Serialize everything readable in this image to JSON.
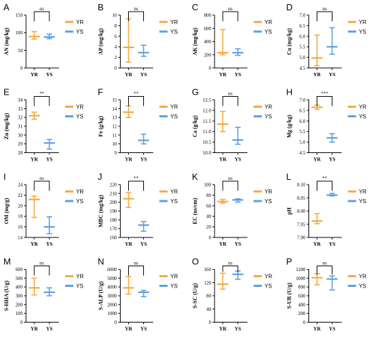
{
  "colors": {
    "YR": "#F5A840",
    "YS": "#5A9FE0"
  },
  "legend": [
    {
      "name": "YR",
      "color": "#F5A840"
    },
    {
      "name": "YS",
      "color": "#5A9FE0"
    }
  ],
  "chart_data": [
    {
      "id": "A",
      "type": "errorbar",
      "categories": [
        "YR",
        "YS"
      ],
      "ylabel": "AN (mg/kg)",
      "ylim": [
        0,
        150
      ],
      "yticks": [
        "0",
        "50",
        "100",
        "150"
      ],
      "sig": "ns",
      "series": [
        {
          "name": "YR",
          "center": 89,
          "low": 82,
          "high": 103
        },
        {
          "name": "YS",
          "center": 88,
          "low": 83,
          "high": 96
        }
      ]
    },
    {
      "id": "B",
      "type": "errorbar",
      "categories": [
        "YR",
        "YS"
      ],
      "ylabel": "AP (mg/kg)",
      "ylim": [
        0,
        10
      ],
      "yticks": [
        "0",
        "2",
        "4",
        "6",
        "8",
        "10"
      ],
      "sig": "ns",
      "series": [
        {
          "name": "YR",
          "center": 3.9,
          "low": 1.1,
          "high": 9.3
        },
        {
          "name": "YS",
          "center": 2.9,
          "low": 2.2,
          "high": 4.3
        }
      ]
    },
    {
      "id": "C",
      "type": "errorbar",
      "categories": [
        "YR",
        "YS"
      ],
      "ylabel": "AK (mg/kg)",
      "ylim": [
        0,
        800
      ],
      "yticks": [
        "0",
        "200",
        "400",
        "600",
        "800"
      ],
      "sig": "ns",
      "series": [
        {
          "name": "YR",
          "center": 230,
          "low": 200,
          "high": 580
        },
        {
          "name": "YS",
          "center": 230,
          "low": 190,
          "high": 290
        }
      ]
    },
    {
      "id": "D",
      "type": "errorbar",
      "categories": [
        "YR",
        "YS"
      ],
      "ylabel": "Cu (mg/kg)",
      "ylim": [
        4.5,
        7.0
      ],
      "yticks": [
        "4.5",
        "5.0",
        "5.5",
        "6.0",
        "6.5",
        "7.0"
      ],
      "sig": "ns",
      "series": [
        {
          "name": "YR",
          "center": 4.97,
          "low": 4.6,
          "high": 6.05
        },
        {
          "name": "YS",
          "center": 5.5,
          "low": 5.15,
          "high": 6.4
        }
      ]
    },
    {
      "id": "E",
      "type": "errorbar",
      "categories": [
        "YR",
        "YS"
      ],
      "ylabel": "Zn (mg/kg)",
      "ylim": [
        28,
        34
      ],
      "yticks": [
        "28",
        "29",
        "30",
        "31",
        "32",
        "33",
        "34"
      ],
      "sig": "**",
      "series": [
        {
          "name": "YR",
          "center": 32.2,
          "low": 31.8,
          "high": 32.6
        },
        {
          "name": "YS",
          "center": 29.1,
          "low": 28.4,
          "high": 29.5
        }
      ]
    },
    {
      "id": "F",
      "type": "errorbar",
      "categories": [
        "YR",
        "YS"
      ],
      "ylabel": "Fe (g/kg)",
      "ylim": [
        9,
        15
      ],
      "yticks": [
        "9",
        "10",
        "11",
        "12",
        "13",
        "14",
        "15"
      ],
      "sig": "**",
      "series": [
        {
          "name": "YR",
          "center": 13.6,
          "low": 13.0,
          "high": 14.3
        },
        {
          "name": "YS",
          "center": 10.4,
          "low": 10.0,
          "high": 11.1
        }
      ]
    },
    {
      "id": "G",
      "type": "errorbar",
      "categories": [
        "YR",
        "YS"
      ],
      "ylabel": "Ca (g/kg)",
      "ylim": [
        10.0,
        12.5
      ],
      "yticks": [
        "10.0",
        "10.5",
        "11.0",
        "11.5",
        "12.0",
        "12.5"
      ],
      "sig": "ns",
      "series": [
        {
          "name": "YR",
          "center": 11.35,
          "low": 11.0,
          "high": 11.95
        },
        {
          "name": "YS",
          "center": 10.6,
          "low": 10.4,
          "high": 11.2
        }
      ]
    },
    {
      "id": "H",
      "type": "errorbar",
      "categories": [
        "YR",
        "YS"
      ],
      "ylabel": "Mg (g/kg)",
      "ylim": [
        4.5,
        7.0
      ],
      "yticks": [
        "4.5",
        "5.0",
        "5.5",
        "6.0",
        "6.5",
        "7.0"
      ],
      "sig": "***",
      "series": [
        {
          "name": "YR",
          "center": 6.65,
          "low": 6.55,
          "high": 6.75
        },
        {
          "name": "YS",
          "center": 5.2,
          "low": 5.0,
          "high": 5.4
        }
      ]
    },
    {
      "id": "I",
      "type": "errorbar",
      "categories": [
        "YR",
        "YS"
      ],
      "ylabel": "OM (mg/g)",
      "ylim": [
        14,
        24
      ],
      "yticks": [
        "14",
        "16",
        "18",
        "20",
        "22",
        "24"
      ],
      "sig": "ns",
      "series": [
        {
          "name": "YR",
          "center": 21.2,
          "low": 17.8,
          "high": 21.8
        },
        {
          "name": "YS",
          "center": 16.0,
          "low": 14.7,
          "high": 17.9
        }
      ]
    },
    {
      "id": "J",
      "type": "errorbar",
      "categories": [
        "YR",
        "YS"
      ],
      "ylabel": "MBC (mg/kg)",
      "ylim": [
        160,
        220
      ],
      "yticks": [
        "160",
        "170",
        "180",
        "190",
        "200",
        "210",
        "220"
      ],
      "sig": "**",
      "series": [
        {
          "name": "YR",
          "center": 204,
          "low": 194,
          "high": 211
        },
        {
          "name": "YS",
          "center": 174,
          "low": 167,
          "high": 178
        }
      ]
    },
    {
      "id": "K",
      "type": "errorbar",
      "categories": [
        "YR",
        "YS"
      ],
      "ylabel": "EC (us/cm)",
      "ylim": [
        0,
        100
      ],
      "yticks": [
        "0",
        "20",
        "40",
        "60",
        "80",
        "100"
      ],
      "sig": "ns",
      "series": [
        {
          "name": "YR",
          "center": 68,
          "low": 65,
          "high": 72
        },
        {
          "name": "YS",
          "center": 71,
          "low": 67,
          "high": 73
        }
      ]
    },
    {
      "id": "L",
      "type": "errorbar",
      "categories": [
        "YR",
        "YS"
      ],
      "ylabel": "pH",
      "ylim": [
        7.9,
        8.1
      ],
      "yticks": [
        "7.90",
        "7.95",
        "8.00",
        "8.05",
        "8.10"
      ],
      "sig": "**",
      "series": [
        {
          "name": "YR",
          "center": 7.962,
          "low": 7.952,
          "high": 7.99
        },
        {
          "name": "YS",
          "center": 8.06,
          "low": 8.057,
          "high": 8.067
        }
      ]
    },
    {
      "id": "M",
      "type": "errorbar",
      "categories": [
        "YR",
        "YS"
      ],
      "ylabel": "S-HHA (U/g)",
      "ylim": [
        0,
        600
      ],
      "yticks": [
        "0",
        "100",
        "200",
        "300",
        "400",
        "500",
        "600"
      ],
      "sig": "ns",
      "series": [
        {
          "name": "YR",
          "center": 390,
          "low": 310,
          "high": 500
        },
        {
          "name": "YS",
          "center": 340,
          "low": 300,
          "high": 390
        }
      ]
    },
    {
      "id": "N",
      "type": "errorbar",
      "categories": [
        "YR",
        "YS"
      ],
      "ylabel": "S-ALP (U/g)",
      "ylim": [
        0,
        6000
      ],
      "yticks": [
        "0",
        "1000",
        "2000",
        "3000",
        "4000",
        "5000",
        "6000"
      ],
      "sig": "ns",
      "series": [
        {
          "name": "YR",
          "center": 3900,
          "low": 3200,
          "high": 5200
        },
        {
          "name": "YS",
          "center": 3400,
          "low": 2900,
          "high": 3600
        }
      ]
    },
    {
      "id": "O",
      "type": "errorbar",
      "categories": [
        "YR",
        "YS"
      ],
      "ylabel": "S-SC (U/g)",
      "ylim": [
        0,
        160
      ],
      "yticks": [
        "0",
        "40",
        "80",
        "120",
        "160"
      ],
      "sig": "ns",
      "series": [
        {
          "name": "YR",
          "center": 115,
          "low": 100,
          "high": 148
        },
        {
          "name": "YS",
          "center": 145,
          "low": 130,
          "high": 155
        }
      ]
    },
    {
      "id": "P",
      "type": "errorbar",
      "categories": [
        "YR",
        "YS"
      ],
      "ylabel": "S-UR (U/g)",
      "ylim": [
        0,
        1200
      ],
      "yticks": [
        "0",
        "200",
        "400",
        "600",
        "800",
        "1000",
        "1200"
      ],
      "sig": "ns",
      "series": [
        {
          "name": "YR",
          "center": 1010,
          "low": 850,
          "high": 1100
        },
        {
          "name": "YS",
          "center": 980,
          "low": 730,
          "high": 1050
        }
      ]
    }
  ]
}
